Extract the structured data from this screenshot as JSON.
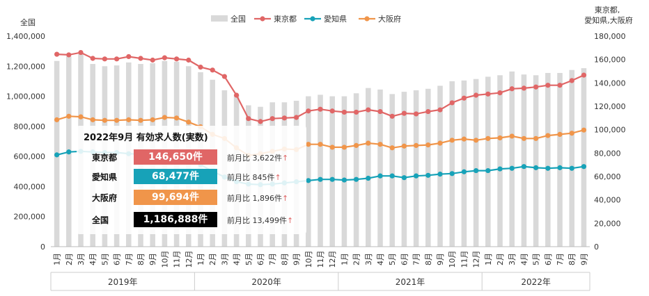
{
  "chart_data": {
    "type": "bar",
    "left_axis_title": "全国",
    "right_axis_title": [
      "東京都,",
      "愛知県,大阪府"
    ],
    "left_ticks": [
      "0",
      "200,000",
      "400,000",
      "600,000",
      "800,000",
      "1,000,000",
      "1,200,000",
      "1,400,000"
    ],
    "right_ticks": [
      "0",
      "20,000",
      "40,000",
      "60,000",
      "80,000",
      "100,000",
      "120,000",
      "140,000",
      "160,000",
      "180,000"
    ],
    "ylim_left": [
      0,
      1400000
    ],
    "ylim_right": [
      0,
      180000
    ],
    "x": [
      "1月",
      "2月",
      "3月",
      "4月",
      "5月",
      "6月",
      "7月",
      "8月",
      "9月",
      "10月",
      "11月",
      "12月",
      "1月",
      "2月",
      "3月",
      "4月",
      "5月",
      "6月",
      "7月",
      "8月",
      "9月",
      "10月",
      "11月",
      "12月",
      "1月",
      "2月",
      "3月",
      "4月",
      "5月",
      "6月",
      "7月",
      "8月",
      "9月",
      "10月",
      "11月",
      "12月",
      "1月",
      "2月",
      "3月",
      "4月",
      "5月",
      "6月",
      "7月",
      "8月",
      "9月"
    ],
    "years": [
      {
        "label": "2019年",
        "start": 0,
        "end": 11
      },
      {
        "label": "2020年",
        "start": 12,
        "end": 23
      },
      {
        "label": "2021年",
        "start": 24,
        "end": 35
      },
      {
        "label": "2022年",
        "start": 36,
        "end": 44
      }
    ],
    "legend": [
      "全国",
      "東京都",
      "愛知県",
      "大阪府"
    ],
    "legend_position": "top",
    "grid": false,
    "series": [
      {
        "name": "全国",
        "type": "bar",
        "axis": "left",
        "color": "#d9d9d9",
        "values": [
          1235000,
          1265000,
          1280000,
          1215000,
          1200000,
          1205000,
          1225000,
          1215000,
          1220000,
          1235000,
          1230000,
          1200000,
          1160000,
          1110000,
          1040000,
          1010000,
          940000,
          930000,
          960000,
          960000,
          970000,
          1000000,
          1010000,
          1000000,
          1000000,
          1020000,
          1055000,
          1045000,
          1015000,
          1030000,
          1040000,
          1050000,
          1070000,
          1100000,
          1105000,
          1115000,
          1130000,
          1140000,
          1165000,
          1145000,
          1140000,
          1155000,
          1155000,
          1175000,
          1186888
        ]
      },
      {
        "name": "東京都",
        "type": "line",
        "axis": "right",
        "color": "#e06666",
        "values": [
          164500,
          164000,
          166000,
          161000,
          160500,
          160500,
          162500,
          161000,
          159500,
          161500,
          160500,
          159500,
          153500,
          151000,
          145500,
          129500,
          109500,
          107000,
          109500,
          110000,
          110500,
          116000,
          117500,
          116000,
          115000,
          115000,
          117000,
          115500,
          111500,
          114000,
          113500,
          115500,
          117000,
          123000,
          127000,
          129500,
          130500,
          131500,
          135000,
          135500,
          136500,
          138000,
          138000,
          142000,
          146650
        ]
      },
      {
        "name": "愛知県",
        "type": "line",
        "axis": "right",
        "color": "#17a2b8",
        "values": [
          78500,
          81000,
          81500,
          81000,
          80500,
          80500,
          79500,
          79000,
          78000,
          78500,
          77500,
          74500,
          70000,
          64500,
          59500,
          55500,
          53500,
          53000,
          53500,
          54500,
          55500,
          56500,
          57500,
          57500,
          57000,
          57500,
          58500,
          60500,
          60500,
          59000,
          60500,
          61000,
          62000,
          62500,
          64000,
          65000,
          65000,
          66500,
          67000,
          68500,
          67500,
          67000,
          67500,
          67000,
          68477
        ]
      },
      {
        "name": "大阪府",
        "type": "line",
        "axis": "right",
        "color": "#f0954a",
        "values": [
          108500,
          111500,
          111000,
          108500,
          108000,
          108000,
          108500,
          108000,
          108500,
          110500,
          110000,
          106500,
          102500,
          96000,
          92500,
          84500,
          78000,
          79500,
          81500,
          83500,
          83000,
          87500,
          87500,
          85000,
          85000,
          86500,
          88500,
          87500,
          84500,
          86000,
          86500,
          87000,
          88500,
          91000,
          92000,
          91000,
          92500,
          93000,
          94500,
          92500,
          92500,
          95000,
          96000,
          97000,
          99694
        ]
      }
    ]
  },
  "info": {
    "title": "2022年9月 有効求人数(実数)",
    "rows": [
      {
        "label": "東京都",
        "value": "146,650件",
        "compare": "前月比 3,622件",
        "arrow": "↑",
        "color": "#e06666"
      },
      {
        "label": "愛知県",
        "value": "68,477件",
        "compare": "前月比 845件",
        "arrow": "↑",
        "color": "#17a2b8"
      },
      {
        "label": "大阪府",
        "value": "99,694件",
        "compare": "前月比 1,896件",
        "arrow": "↑",
        "color": "#f0954a"
      },
      {
        "label": "全国",
        "value": "1,186,888件",
        "compare": "前月比 13,499件",
        "arrow": "↑",
        "color": "#000000"
      }
    ]
  }
}
